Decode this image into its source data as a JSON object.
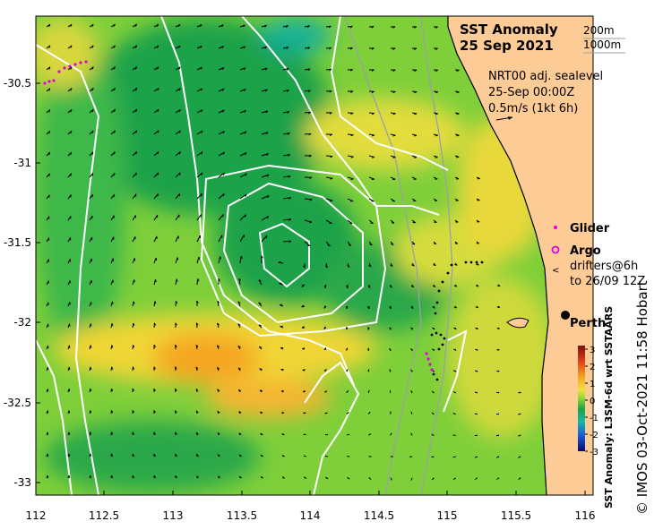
{
  "title": "SST Anomaly",
  "date": "25 Sep 2021",
  "depth_labels": [
    "200m",
    "1000m"
  ],
  "current_info": [
    "NRT00 adj. sealevel",
    "25-Sep 00:00Z",
    "0.5m/s (1kt 6h)"
  ],
  "legend": {
    "glider": "Glider",
    "argo": "Argo",
    "drifters": [
      "drifters@6h",
      "to 26/09 12Z"
    ]
  },
  "city": "Perth",
  "colorbar": {
    "label": "SST Anomaly: L3SM-6d wrt SSTAARS",
    "ticks": [
      "3",
      "2",
      "1",
      "0",
      "-1",
      "-2",
      "-3"
    ]
  },
  "credit": "© IMOS 03-Oct-2021 11:58 Hobart",
  "axes": {
    "x_ticks": [
      "112",
      "112.5",
      "113",
      "113.5",
      "114",
      "114.5",
      "115",
      "115.5",
      "116"
    ],
    "y_ticks": [
      "-30.5",
      "-31",
      "-31.5",
      "-32",
      "-32.5",
      "-33"
    ]
  },
  "colors": {
    "land": "#fccb96",
    "anomaly_low": "#1ea24a",
    "anomaly_mid": "#7ecf3a",
    "anomaly_high": "#f0d636",
    "anomaly_warm": "#f5a623",
    "contour": "#ffffff",
    "isobath": "#9aa0a6",
    "glider": "#e000e0"
  }
}
